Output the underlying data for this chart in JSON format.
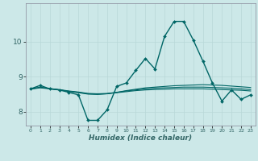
{
  "xlabel": "Humidex (Indice chaleur)",
  "background_color": "#cce8e8",
  "grid_color": "#b8d8d8",
  "line_color": "#006666",
  "tick_color": "#336666",
  "xlim": [
    -0.5,
    23.5
  ],
  "ylim": [
    7.6,
    11.1
  ],
  "yticks": [
    8,
    9,
    10
  ],
  "xticks": [
    0,
    1,
    2,
    3,
    4,
    5,
    6,
    7,
    8,
    9,
    10,
    11,
    12,
    13,
    14,
    15,
    16,
    17,
    18,
    19,
    20,
    21,
    22,
    23
  ],
  "series": [
    {
      "y": [
        8.65,
        8.75,
        8.65,
        8.62,
        8.55,
        8.48,
        7.75,
        7.75,
        8.05,
        8.72,
        8.82,
        9.18,
        9.52,
        9.22,
        10.15,
        10.58,
        10.58,
        10.05,
        9.45,
        8.82,
        8.3,
        8.62,
        8.35,
        8.48
      ],
      "marker": true,
      "linewidth": 1.0
    },
    {
      "y": [
        8.65,
        8.7,
        8.66,
        8.62,
        8.58,
        8.54,
        8.5,
        8.49,
        8.51,
        8.55,
        8.6,
        8.64,
        8.68,
        8.7,
        8.72,
        8.74,
        8.75,
        8.76,
        8.77,
        8.76,
        8.75,
        8.73,
        8.71,
        8.69
      ],
      "marker": false,
      "linewidth": 0.8
    },
    {
      "y": [
        8.65,
        8.69,
        8.66,
        8.63,
        8.59,
        8.56,
        8.52,
        8.51,
        8.52,
        8.55,
        8.59,
        8.62,
        8.65,
        8.67,
        8.68,
        8.69,
        8.7,
        8.7,
        8.7,
        8.69,
        8.68,
        8.67,
        8.65,
        8.63
      ],
      "marker": false,
      "linewidth": 0.8
    },
    {
      "y": [
        8.64,
        8.68,
        8.65,
        8.62,
        8.58,
        8.55,
        8.51,
        8.5,
        8.51,
        8.54,
        8.57,
        8.6,
        8.62,
        8.63,
        8.64,
        8.65,
        8.65,
        8.65,
        8.65,
        8.64,
        8.63,
        8.62,
        8.61,
        8.59
      ],
      "marker": false,
      "linewidth": 0.8
    }
  ]
}
